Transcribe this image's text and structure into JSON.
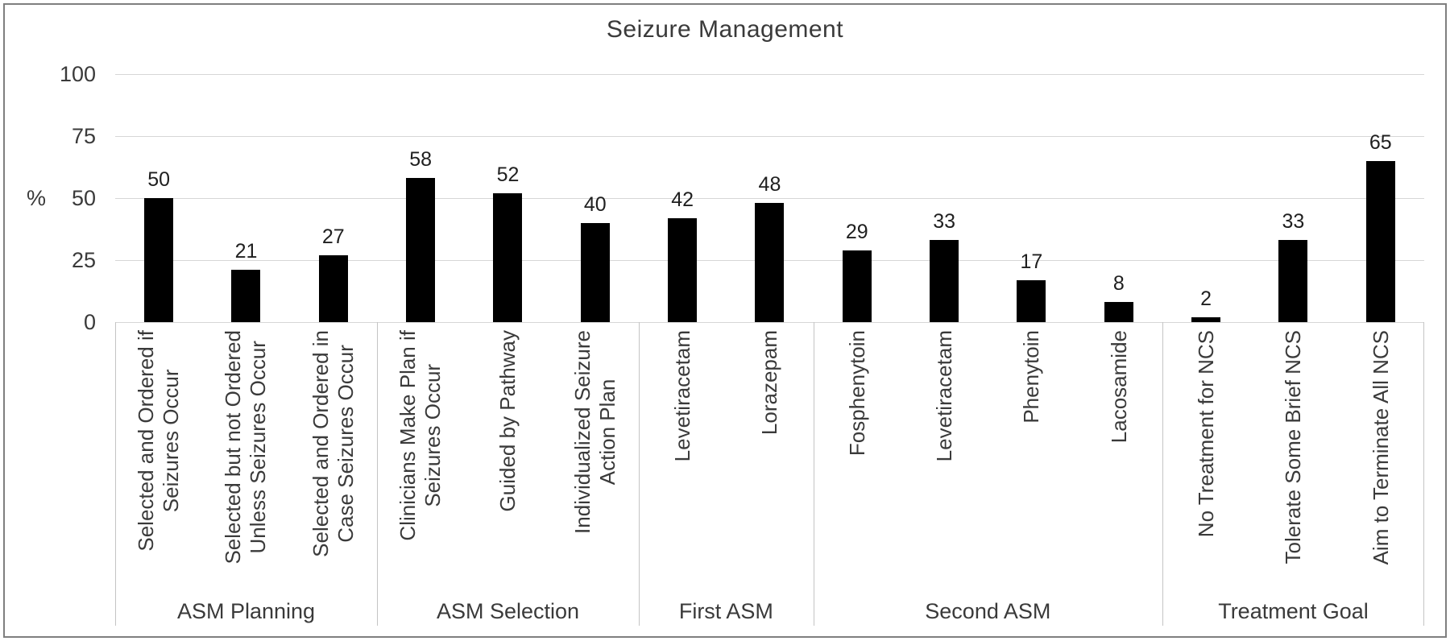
{
  "figure": {
    "title": "Seizure Management",
    "y_axis_label": "%"
  },
  "chart_data": {
    "type": "bar",
    "title": "Seizure Management",
    "xlabel": "",
    "ylabel": "%",
    "ylim": [
      0,
      100
    ],
    "yticks": [
      0,
      25,
      50,
      75,
      100
    ],
    "grid": true,
    "legend": "none",
    "bar_color": "#000000",
    "value_labels_shown": true,
    "categories": [
      "Selected and Ordered if Seizures Occur",
      "Selected but not Ordered Unless Seizures Occur",
      "Selected and Ordered in Case Seizures Occur",
      "Clinicians Make Plan if Seizures Occur",
      "Guided by Pathway",
      "Individualized Seizure Action Plan",
      "Levetiracetam",
      "Lorazepam",
      "Fosphenytoin",
      "Levetiracetam",
      "Phenytoin",
      "Lacosamide",
      "No Treatment for NCS",
      "Tolerate Some Brief NCS",
      "Aim to Terminate All NCS"
    ],
    "values": [
      50,
      21,
      27,
      58,
      52,
      40,
      42,
      48,
      29,
      33,
      17,
      8,
      2,
      33,
      65
    ],
    "groups": [
      {
        "label": "ASM Planning",
        "bars": [
          {
            "label": "Selected and Ordered if\nSeizures Occur",
            "value": 50
          },
          {
            "label": "Selected but not Ordered\nUnless Seizures Occur",
            "value": 21
          },
          {
            "label": "Selected and Ordered in\nCase Seizures Occur",
            "value": 27
          }
        ]
      },
      {
        "label": "ASM Selection",
        "bars": [
          {
            "label": "Clinicians Make Plan if\nSeizures Occur",
            "value": 58
          },
          {
            "label": "Guided by Pathway",
            "value": 52
          },
          {
            "label": "Individualized Seizure\nAction Plan",
            "value": 40
          }
        ]
      },
      {
        "label": "First ASM",
        "bars": [
          {
            "label": "Levetiracetam",
            "value": 42
          },
          {
            "label": "Lorazepam",
            "value": 48
          }
        ]
      },
      {
        "label": "Second ASM",
        "bars": [
          {
            "label": "Fosphenytoin",
            "value": 29
          },
          {
            "label": "Levetiracetam",
            "value": 33
          },
          {
            "label": "Phenytoin",
            "value": 17
          },
          {
            "label": "Lacosamide",
            "value": 8
          }
        ]
      },
      {
        "label": "Treatment Goal",
        "bars": [
          {
            "label": "No Treatment for NCS",
            "value": 2
          },
          {
            "label": "Tolerate Some Brief NCS",
            "value": 33
          },
          {
            "label": "Aim to Terminate All NCS",
            "value": 65
          }
        ]
      }
    ]
  },
  "colors": {
    "bar": "#000000",
    "gridline": "#d6d6d6",
    "text": "#3a3a3a",
    "divider": "#c4c4c4",
    "frame_border": "#7f7f7f",
    "background": "#ffffff"
  }
}
